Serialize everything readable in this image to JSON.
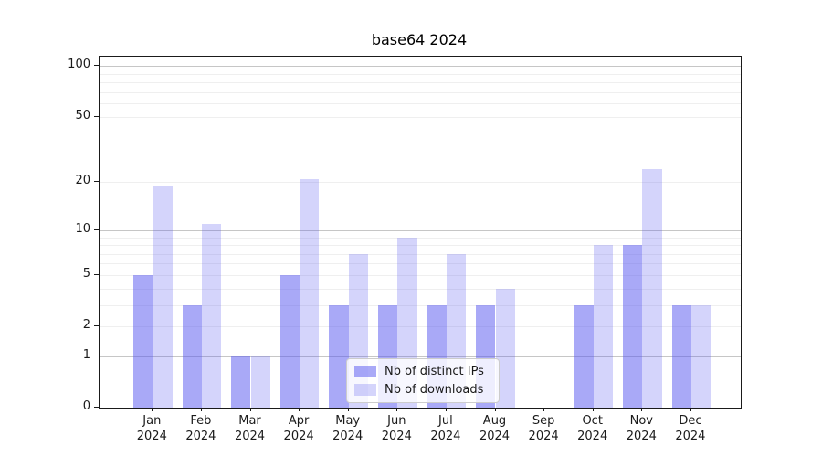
{
  "title": "base64 2024",
  "chart_data": {
    "type": "bar",
    "title": "base64 2024",
    "xlabel": "",
    "ylabel": "",
    "categories": [
      "Jan",
      "Feb",
      "Mar",
      "Apr",
      "May",
      "Jun",
      "Jul",
      "Aug",
      "Sep",
      "Oct",
      "Nov",
      "Dec"
    ],
    "year_label": "2024",
    "series": [
      {
        "name": "Nb of distinct IPs",
        "color": "rgba(84,84,240,0.50)",
        "values": [
          5,
          3,
          1,
          5,
          3,
          3,
          3,
          3,
          0,
          3,
          8,
          3
        ]
      },
      {
        "name": "Nb of downloads",
        "color": "rgba(84,84,240,0.25)",
        "values": [
          19,
          11,
          1,
          21,
          7,
          9,
          7,
          4,
          0,
          8,
          24,
          3
        ]
      }
    ],
    "yscale": "log10(1+v)",
    "ylim": [
      0,
      114
    ],
    "yticks": [
      0,
      1,
      2,
      5,
      10,
      20,
      50,
      100
    ],
    "ytick_labels": [
      "0",
      "1",
      "2",
      "5",
      "10",
      "20",
      "50",
      "100"
    ],
    "major_gridlines": [
      1,
      10,
      100
    ],
    "minor_gridlines": [
      2,
      3,
      4,
      5,
      6,
      7,
      8,
      9,
      20,
      30,
      40,
      50,
      60,
      70,
      80,
      90
    ],
    "grid": "on",
    "legend_position": "lower center",
    "colors": {
      "major_grid": "#c6c6c6",
      "minor_grid": "#efefef",
      "spine": "#1a1a1a",
      "bar_dark_blended": "#aaaaf5",
      "bar_light_blended": "#d8d8f5"
    }
  }
}
